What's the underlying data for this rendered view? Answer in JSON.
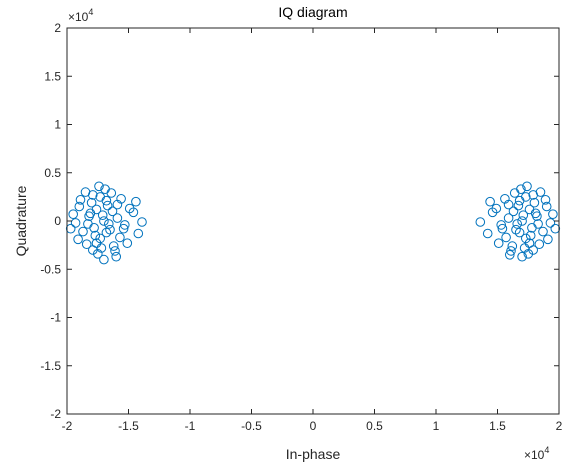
{
  "chart_data": {
    "type": "scatter",
    "title": "IQ diagram",
    "xlabel": "In-phase",
    "ylabel": "Quadrature",
    "xlim": [
      -20000,
      20000
    ],
    "ylim": [
      -20000,
      20000
    ],
    "x_ticks": [
      -2,
      -1.5,
      -1,
      -0.5,
      0,
      0.5,
      1,
      1.5,
      2
    ],
    "x_tick_labels": [
      "-2",
      "-1.5",
      "-1",
      "-0.5",
      "0",
      "0.5",
      "1",
      "1.5",
      "2"
    ],
    "y_ticks": [
      -2,
      -1.5,
      -1,
      -0.5,
      0,
      0.5,
      1,
      1.5,
      2
    ],
    "y_tick_labels": [
      "-2",
      "-1.5",
      "-1",
      "-0.5",
      "0",
      "0.5",
      "1",
      "1.5",
      "2"
    ],
    "x_exponent_base": "×10",
    "x_exponent_power": "4",
    "y_exponent_base": "×10",
    "y_exponent_power": "4",
    "grid": false,
    "marker": "open-circle",
    "color": "#0072BD",
    "series": [
      {
        "values": [
          [
            -17000,
            0
          ],
          [
            -17600,
            1200
          ],
          [
            -16500,
            -900
          ],
          [
            -18200,
            500
          ],
          [
            -15900,
            300
          ],
          [
            -17300,
            -1800
          ],
          [
            -16800,
            2100
          ],
          [
            -18700,
            -1100
          ],
          [
            -15300,
            -400
          ],
          [
            -17900,
            2700
          ],
          [
            -16200,
            -2600
          ],
          [
            -19000,
            1500
          ],
          [
            -14600,
            900
          ],
          [
            -17500,
            -3400
          ],
          [
            -16900,
            3300
          ],
          [
            -18400,
            -2400
          ],
          [
            -15600,
            2300
          ],
          [
            -19300,
            -200
          ],
          [
            -14200,
            -1300
          ],
          [
            -17100,
            600
          ],
          [
            -16600,
            -300
          ],
          [
            -17800,
            -700
          ],
          [
            -16300,
            1000
          ],
          [
            -18000,
            1900
          ],
          [
            -15700,
            -1700
          ],
          [
            -17400,
            3600
          ],
          [
            -16100,
            -3100
          ],
          [
            -19500,
            700
          ],
          [
            -13900,
            -100
          ],
          [
            -17200,
            -2800
          ],
          [
            -18900,
            2200
          ],
          [
            -15100,
            -2300
          ],
          [
            -16700,
            1600
          ],
          [
            -17700,
            -1500
          ],
          [
            -18300,
            -300
          ],
          [
            -15900,
            1700
          ],
          [
            -17000,
            -4000
          ],
          [
            -16400,
            2900
          ],
          [
            -19100,
            -1900
          ],
          [
            -14900,
            1300
          ],
          [
            -18500,
            3000
          ],
          [
            -16000,
            -3700
          ],
          [
            -17300,
            2500
          ],
          [
            -19700,
            -800
          ],
          [
            -14400,
            2000
          ],
          [
            -17600,
            -2300
          ],
          [
            -16800,
            -1200
          ],
          [
            -18100,
            800
          ],
          [
            -15400,
            -800
          ],
          [
            -17900,
            -3000
          ]
        ]
      },
      {
        "values": [
          [
            17000,
            0
          ],
          [
            17600,
            1200
          ],
          [
            16500,
            -900
          ],
          [
            18200,
            500
          ],
          [
            15900,
            300
          ],
          [
            17300,
            -1800
          ],
          [
            16800,
            2100
          ],
          [
            18700,
            -1100
          ],
          [
            15300,
            -400
          ],
          [
            17900,
            2700
          ],
          [
            16200,
            -2600
          ],
          [
            19000,
            1500
          ],
          [
            14600,
            900
          ],
          [
            17500,
            -3400
          ],
          [
            16900,
            3300
          ],
          [
            18400,
            -2400
          ],
          [
            15600,
            2300
          ],
          [
            19300,
            -200
          ],
          [
            14200,
            -1300
          ],
          [
            17100,
            600
          ],
          [
            16600,
            -300
          ],
          [
            17800,
            -700
          ],
          [
            16300,
            1000
          ],
          [
            18000,
            1900
          ],
          [
            15700,
            -1700
          ],
          [
            17400,
            3600
          ],
          [
            16100,
            -3100
          ],
          [
            19500,
            700
          ],
          [
            13600,
            -100
          ],
          [
            17200,
            -2800
          ],
          [
            18900,
            2200
          ],
          [
            15100,
            -2300
          ],
          [
            16700,
            1600
          ],
          [
            17700,
            -1500
          ],
          [
            18300,
            -300
          ],
          [
            15900,
            1700
          ],
          [
            17000,
            -3700
          ],
          [
            16400,
            2900
          ],
          [
            19100,
            -1900
          ],
          [
            14900,
            1300
          ],
          [
            18500,
            3000
          ],
          [
            16000,
            -3500
          ],
          [
            17300,
            2500
          ],
          [
            19700,
            -800
          ],
          [
            14400,
            2000
          ],
          [
            17600,
            -2300
          ],
          [
            16800,
            -1200
          ],
          [
            18100,
            800
          ],
          [
            15400,
            -800
          ],
          [
            17900,
            -3000
          ]
        ]
      }
    ]
  }
}
